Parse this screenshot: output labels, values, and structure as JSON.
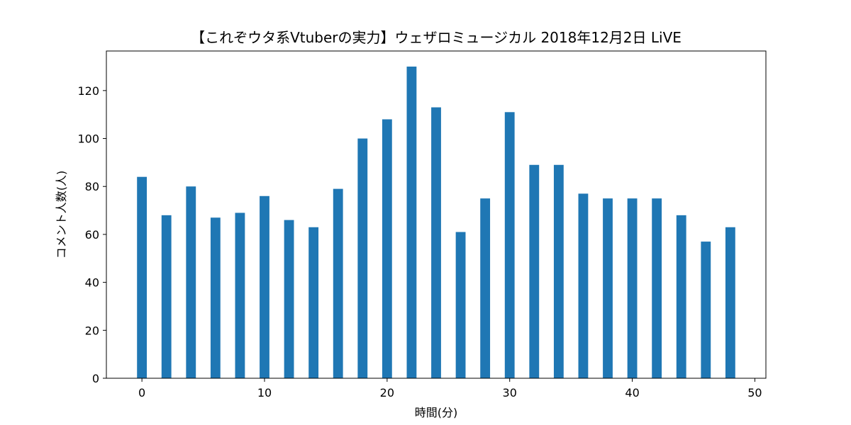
{
  "chart_data": {
    "type": "bar",
    "title": "【これぞウタ系Vtuberの実力】ウェザロミュージカル 2018年12月2日 LiVE",
    "xlabel": "時間(分)",
    "ylabel": "コメント人数(人)",
    "x": [
      0,
      2,
      4,
      6,
      8,
      10,
      12,
      14,
      16,
      18,
      20,
      22,
      24,
      26,
      28,
      30,
      32,
      34,
      36,
      38,
      40,
      42,
      44,
      46,
      48
    ],
    "values": [
      84,
      68,
      80,
      67,
      69,
      76,
      66,
      63,
      79,
      100,
      108,
      130,
      113,
      61,
      75,
      111,
      89,
      89,
      77,
      75,
      75,
      75,
      68,
      57,
      63
    ],
    "xlim": [
      -2.9,
      50.9
    ],
    "ylim": [
      0,
      136.5
    ],
    "xticks": [
      0,
      10,
      20,
      30,
      40,
      50
    ],
    "yticks": [
      0,
      20,
      40,
      60,
      80,
      100,
      120
    ],
    "bar_width_units": 0.8,
    "bar_color": "#1f77b4",
    "grid": false,
    "legend": "none"
  }
}
